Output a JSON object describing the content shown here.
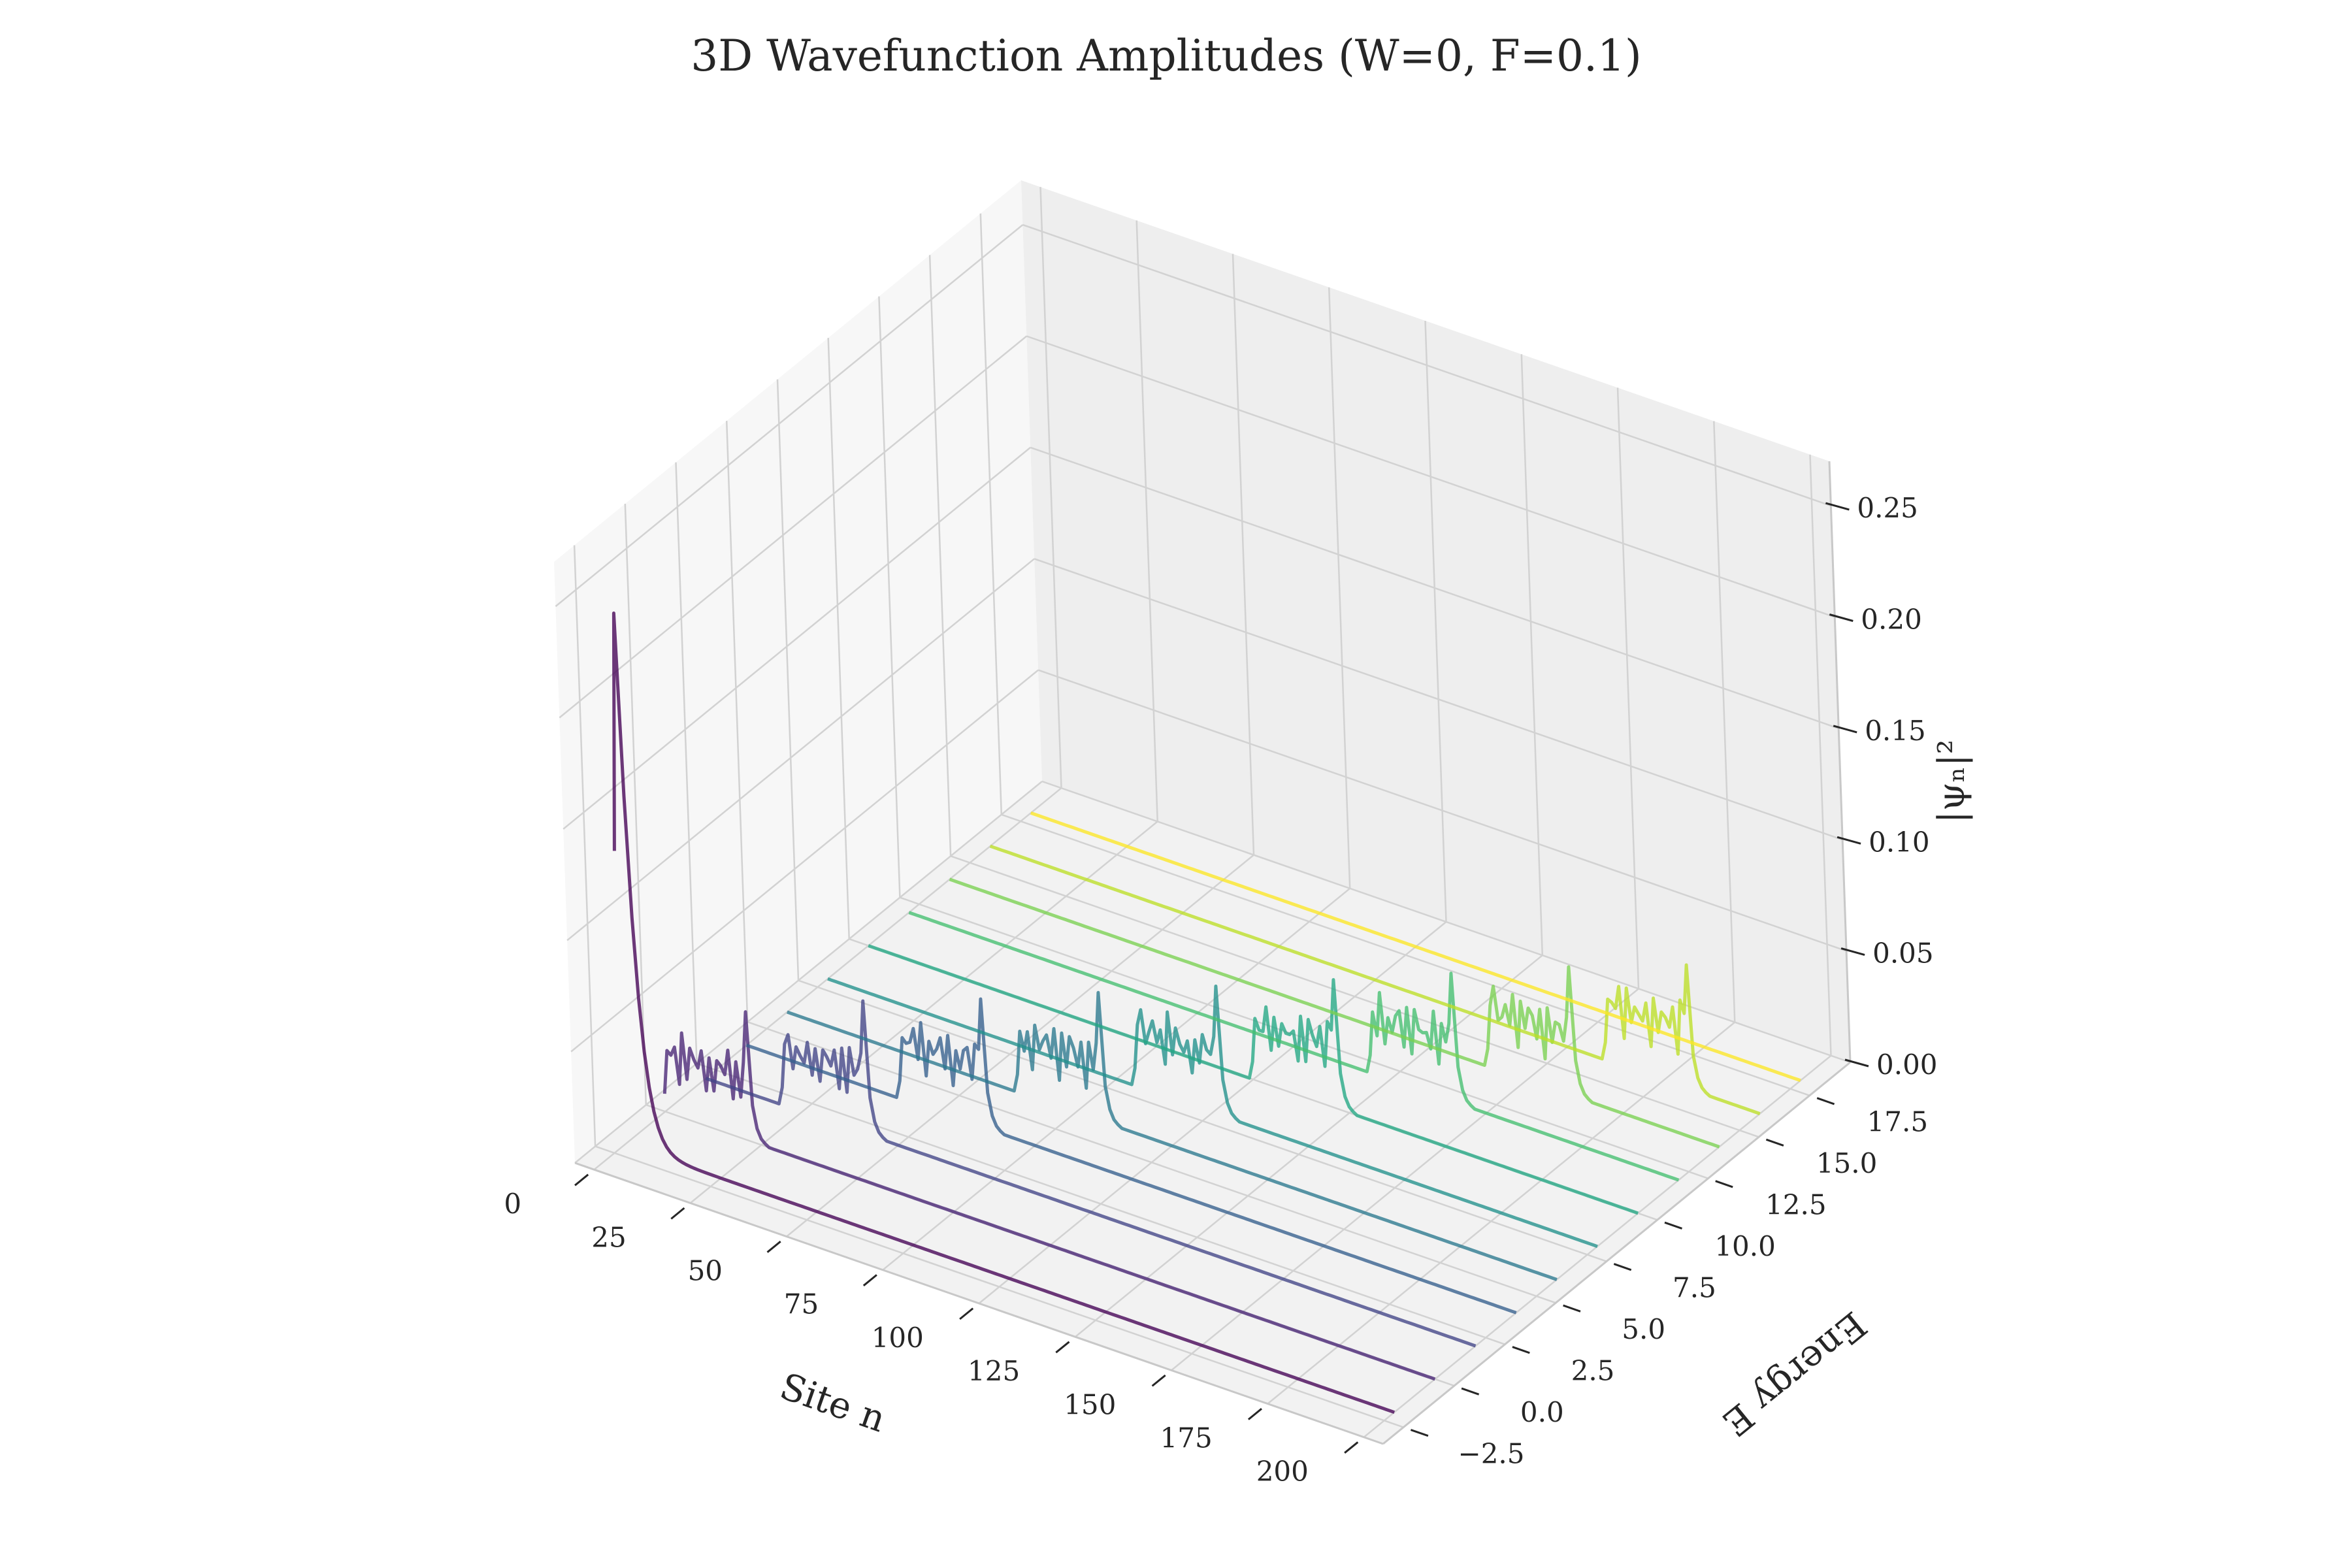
{
  "chart_data": {
    "type": "line",
    "projection": "3d",
    "title": "3D Wavefunction Amplitudes (W=0, F=0.1)",
    "xlabel": "Site n",
    "ylabel": "Energy E",
    "zlabel": "|ψₙ|²",
    "xlim": [
      -5,
      205
    ],
    "ylim": [
      -3.5,
      19.5
    ],
    "zlim": [
      0,
      0.27
    ],
    "xticks": [
      "0",
      "25",
      "50",
      "75",
      "100",
      "125",
      "150",
      "175",
      "200"
    ],
    "yticks": [
      "−2.5",
      "0.0",
      "2.5",
      "5.0",
      "7.5",
      "10.0",
      "12.5",
      "15.0",
      "17.5"
    ],
    "zticks": [
      "0.00",
      "0.05",
      "0.10",
      "0.15",
      "0.20",
      "0.25"
    ],
    "grid": true,
    "colormap": "viridis",
    "series_energies": [
      -2.0,
      0.0,
      2.0,
      4.0,
      6.0,
      8.0,
      10.0,
      12.0,
      14.0,
      16.0,
      18.0
    ],
    "series_colors": [
      "#440154",
      "#482475",
      "#414487",
      "#355f8d",
      "#2a788e",
      "#21918c",
      "#22a884",
      "#44bf70",
      "#7ad151",
      "#bddf26",
      "#fde725"
    ],
    "series": [
      {
        "energy": -2.0,
        "peak_site": 2,
        "peak_height": 0.24,
        "envelope": "edge"
      },
      {
        "energy": 0.0,
        "peak_site": 22,
        "peak_height": 0.058,
        "envelope": "oscillating"
      },
      {
        "energy": 2.0,
        "peak_site": 42,
        "peak_height": 0.06,
        "envelope": "oscillating"
      },
      {
        "energy": 4.0,
        "peak_site": 62,
        "peak_height": 0.058,
        "envelope": "oscillating"
      },
      {
        "energy": 6.0,
        "peak_site": 82,
        "peak_height": 0.058,
        "envelope": "oscillating"
      },
      {
        "energy": 8.0,
        "peak_site": 102,
        "peak_height": 0.058,
        "envelope": "oscillating"
      },
      {
        "energy": 10.0,
        "peak_site": 122,
        "peak_height": 0.058,
        "envelope": "oscillating"
      },
      {
        "energy": 12.0,
        "peak_site": 142,
        "peak_height": 0.058,
        "envelope": "oscillating"
      },
      {
        "energy": 14.0,
        "peak_site": 162,
        "peak_height": 0.058,
        "envelope": "oscillating"
      },
      {
        "energy": 16.0,
        "peak_site": 182,
        "peak_height": 0.056,
        "envelope": "oscillating"
      },
      {
        "energy": 18.0,
        "peak_site": 200,
        "peak_height": 0.0,
        "envelope": "flat"
      }
    ]
  }
}
